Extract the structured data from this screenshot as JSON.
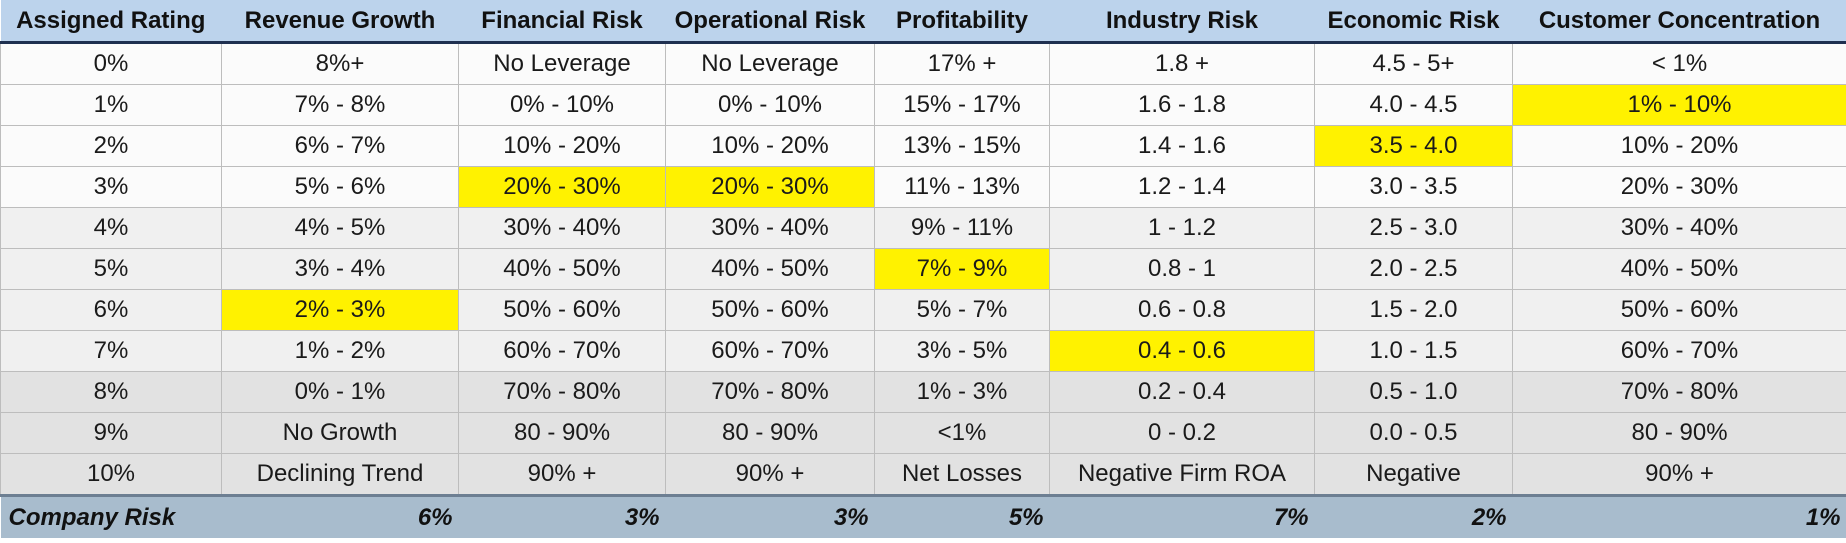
{
  "table": {
    "headers": [
      "Assigned Rating",
      "Revenue Growth",
      "Financial Risk",
      "Operational Risk",
      "Profitability",
      "Industry Risk",
      "Economic Risk",
      "Customer Concentration"
    ],
    "rows": [
      [
        "0%",
        "8%+",
        "No Leverage",
        "No Leverage",
        "17% +",
        "1.8 +",
        "4.5 - 5+",
        "< 1%"
      ],
      [
        "1%",
        "7% - 8%",
        "0% - 10%",
        "0% - 10%",
        "15% - 17%",
        "1.6 - 1.8",
        "4.0 - 4.5",
        "1% - 10%"
      ],
      [
        "2%",
        "6% - 7%",
        "10% - 20%",
        "10% - 20%",
        "13% - 15%",
        "1.4 - 1.6",
        "3.5 - 4.0",
        "10% - 20%"
      ],
      [
        "3%",
        "5% - 6%",
        "20% - 30%",
        "20% - 30%",
        "11% - 13%",
        "1.2 - 1.4",
        "3.0 - 3.5",
        "20% - 30%"
      ],
      [
        "4%",
        "4% - 5%",
        "30% - 40%",
        "30% - 40%",
        "9% - 11%",
        "1 - 1.2",
        "2.5 - 3.0",
        "30% - 40%"
      ],
      [
        "5%",
        "3% - 4%",
        "40% - 50%",
        "40% - 50%",
        "7% - 9%",
        "0.8 - 1",
        "2.0 - 2.5",
        "40% - 50%"
      ],
      [
        "6%",
        "2% - 3%",
        "50% - 60%",
        "50% - 60%",
        "5% - 7%",
        "0.6 - 0.8",
        "1.5 - 2.0",
        "50% - 60%"
      ],
      [
        "7%",
        "1% - 2%",
        "60% - 70%",
        "60% - 70%",
        "3% - 5%",
        "0.4 - 0.6",
        "1.0 - 1.5",
        "60% - 70%"
      ],
      [
        "8%",
        "0% - 1%",
        "70% - 80%",
        "70% - 80%",
        "1% - 3%",
        "0.2 - 0.4",
        "0.5 - 1.0",
        "70% - 80%"
      ],
      [
        "9%",
        "No Growth",
        "80 - 90%",
        "80 - 90%",
        "<1%",
        "0 - 0.2",
        "0.0 - 0.5",
        "80 - 90%"
      ],
      [
        "10%",
        "Declining Trend",
        "90% +",
        "90% +",
        "Net Losses",
        "Negative Firm ROA",
        "Negative",
        "90% +"
      ]
    ],
    "highlight_color": "#fff200",
    "highlight_row_by_column": [
      null,
      6,
      3,
      3,
      5,
      7,
      2,
      1
    ],
    "footer": {
      "label": "Company Risk",
      "values": [
        "6%",
        "3%",
        "3%",
        "5%",
        "7%",
        "2%",
        "1%"
      ]
    }
  }
}
